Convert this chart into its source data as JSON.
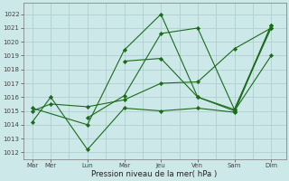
{
  "xlabel": "Pression niveau de la mer( hPa )",
  "ylim": [
    1011.5,
    1022.8
  ],
  "yticks": [
    1012,
    1013,
    1014,
    1015,
    1016,
    1017,
    1018,
    1019,
    1020,
    1021,
    1022
  ],
  "bg_color": "#cce8e8",
  "grid_color": "#aacccc",
  "line_color": "#1a6b1a",
  "xtick_positions": [
    0,
    1,
    3,
    5,
    7,
    9,
    11,
    13
  ],
  "xtick_labels": [
    "Mar",
    "Mer",
    "Lun",
    "Mar",
    "Jeu",
    "Ven",
    "Sam",
    "Dim"
  ],
  "xlim": [
    -0.5,
    13.8
  ],
  "series": [
    {
      "x": [
        0,
        1,
        3,
        5,
        7,
        9,
        11,
        13
      ],
      "y": [
        1014.2,
        1016.0,
        1012.2,
        1015.2,
        1015.0,
        1015.2,
        1014.9,
        1021.2
      ]
    },
    {
      "x": [
        0,
        1,
        3,
        5,
        7,
        9,
        11,
        13
      ],
      "y": [
        1015.0,
        1015.5,
        1015.3,
        1015.8,
        1017.0,
        1017.1,
        1019.5,
        1021.0
      ]
    },
    {
      "x": [
        0,
        3,
        5,
        7,
        9,
        11,
        13
      ],
      "y": [
        1015.2,
        1014.0,
        1019.4,
        1022.0,
        1016.0,
        1015.1,
        1021.2
      ]
    },
    {
      "x": [
        3,
        5,
        7,
        9,
        11,
        13
      ],
      "y": [
        1014.5,
        1016.1,
        1020.6,
        1021.0,
        1015.1,
        1021.0
      ]
    },
    {
      "x": [
        5,
        7,
        9,
        11,
        13
      ],
      "y": [
        1018.6,
        1018.8,
        1016.0,
        1015.0,
        1019.0
      ]
    }
  ]
}
